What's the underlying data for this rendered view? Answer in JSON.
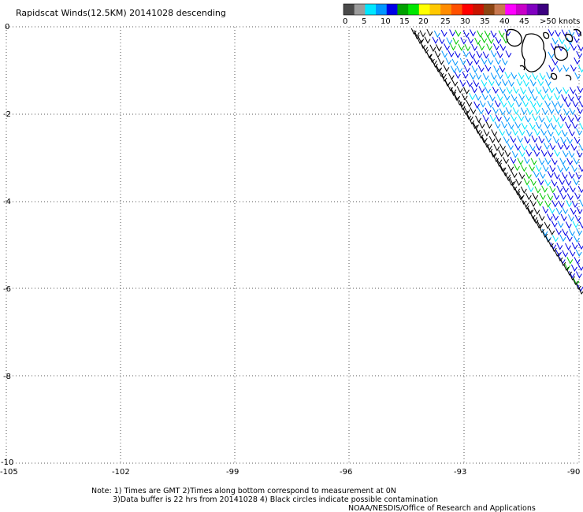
{
  "title": "Rapidscat Winds(12.5KM) 20141028 descending",
  "colorbar": {
    "colors": [
      "#4a4a4a",
      "#9c9c9c",
      "#00e6ff",
      "#0096ff",
      "#0000e6",
      "#00a000",
      "#00e600",
      "#ffff00",
      "#ffc800",
      "#ff8c00",
      "#ff5000",
      "#ff0000",
      "#c81400",
      "#8b4513",
      "#c87850",
      "#ff00ff",
      "#c800c8",
      "#8000c0",
      "#3c0080"
    ],
    "labels": [
      "0",
      "5",
      "10",
      "15",
      "20",
      "25",
      "30",
      "35",
      "40",
      "45",
      ">50"
    ],
    "units": "knots"
  },
  "axes": {
    "x_ticks": [
      "-105",
      "-102",
      "-99",
      "-96",
      "-93",
      "-90"
    ],
    "y_ticks": [
      "0",
      "-2",
      "-4",
      "-6",
      "-8",
      "-10"
    ],
    "lon_range": [
      -105,
      -90
    ],
    "lat_range": [
      -10,
      0
    ]
  },
  "notes": {
    "line1": "Note: 1) Times are GMT 2)Times along bottom correspond to measurement at 0N",
    "line2": "3)Data buffer is 22 hrs from 20141028 4) Black circles indicate possible contamination",
    "credit": "NOAA/NESDIS/Office of Research and Applications"
  }
}
